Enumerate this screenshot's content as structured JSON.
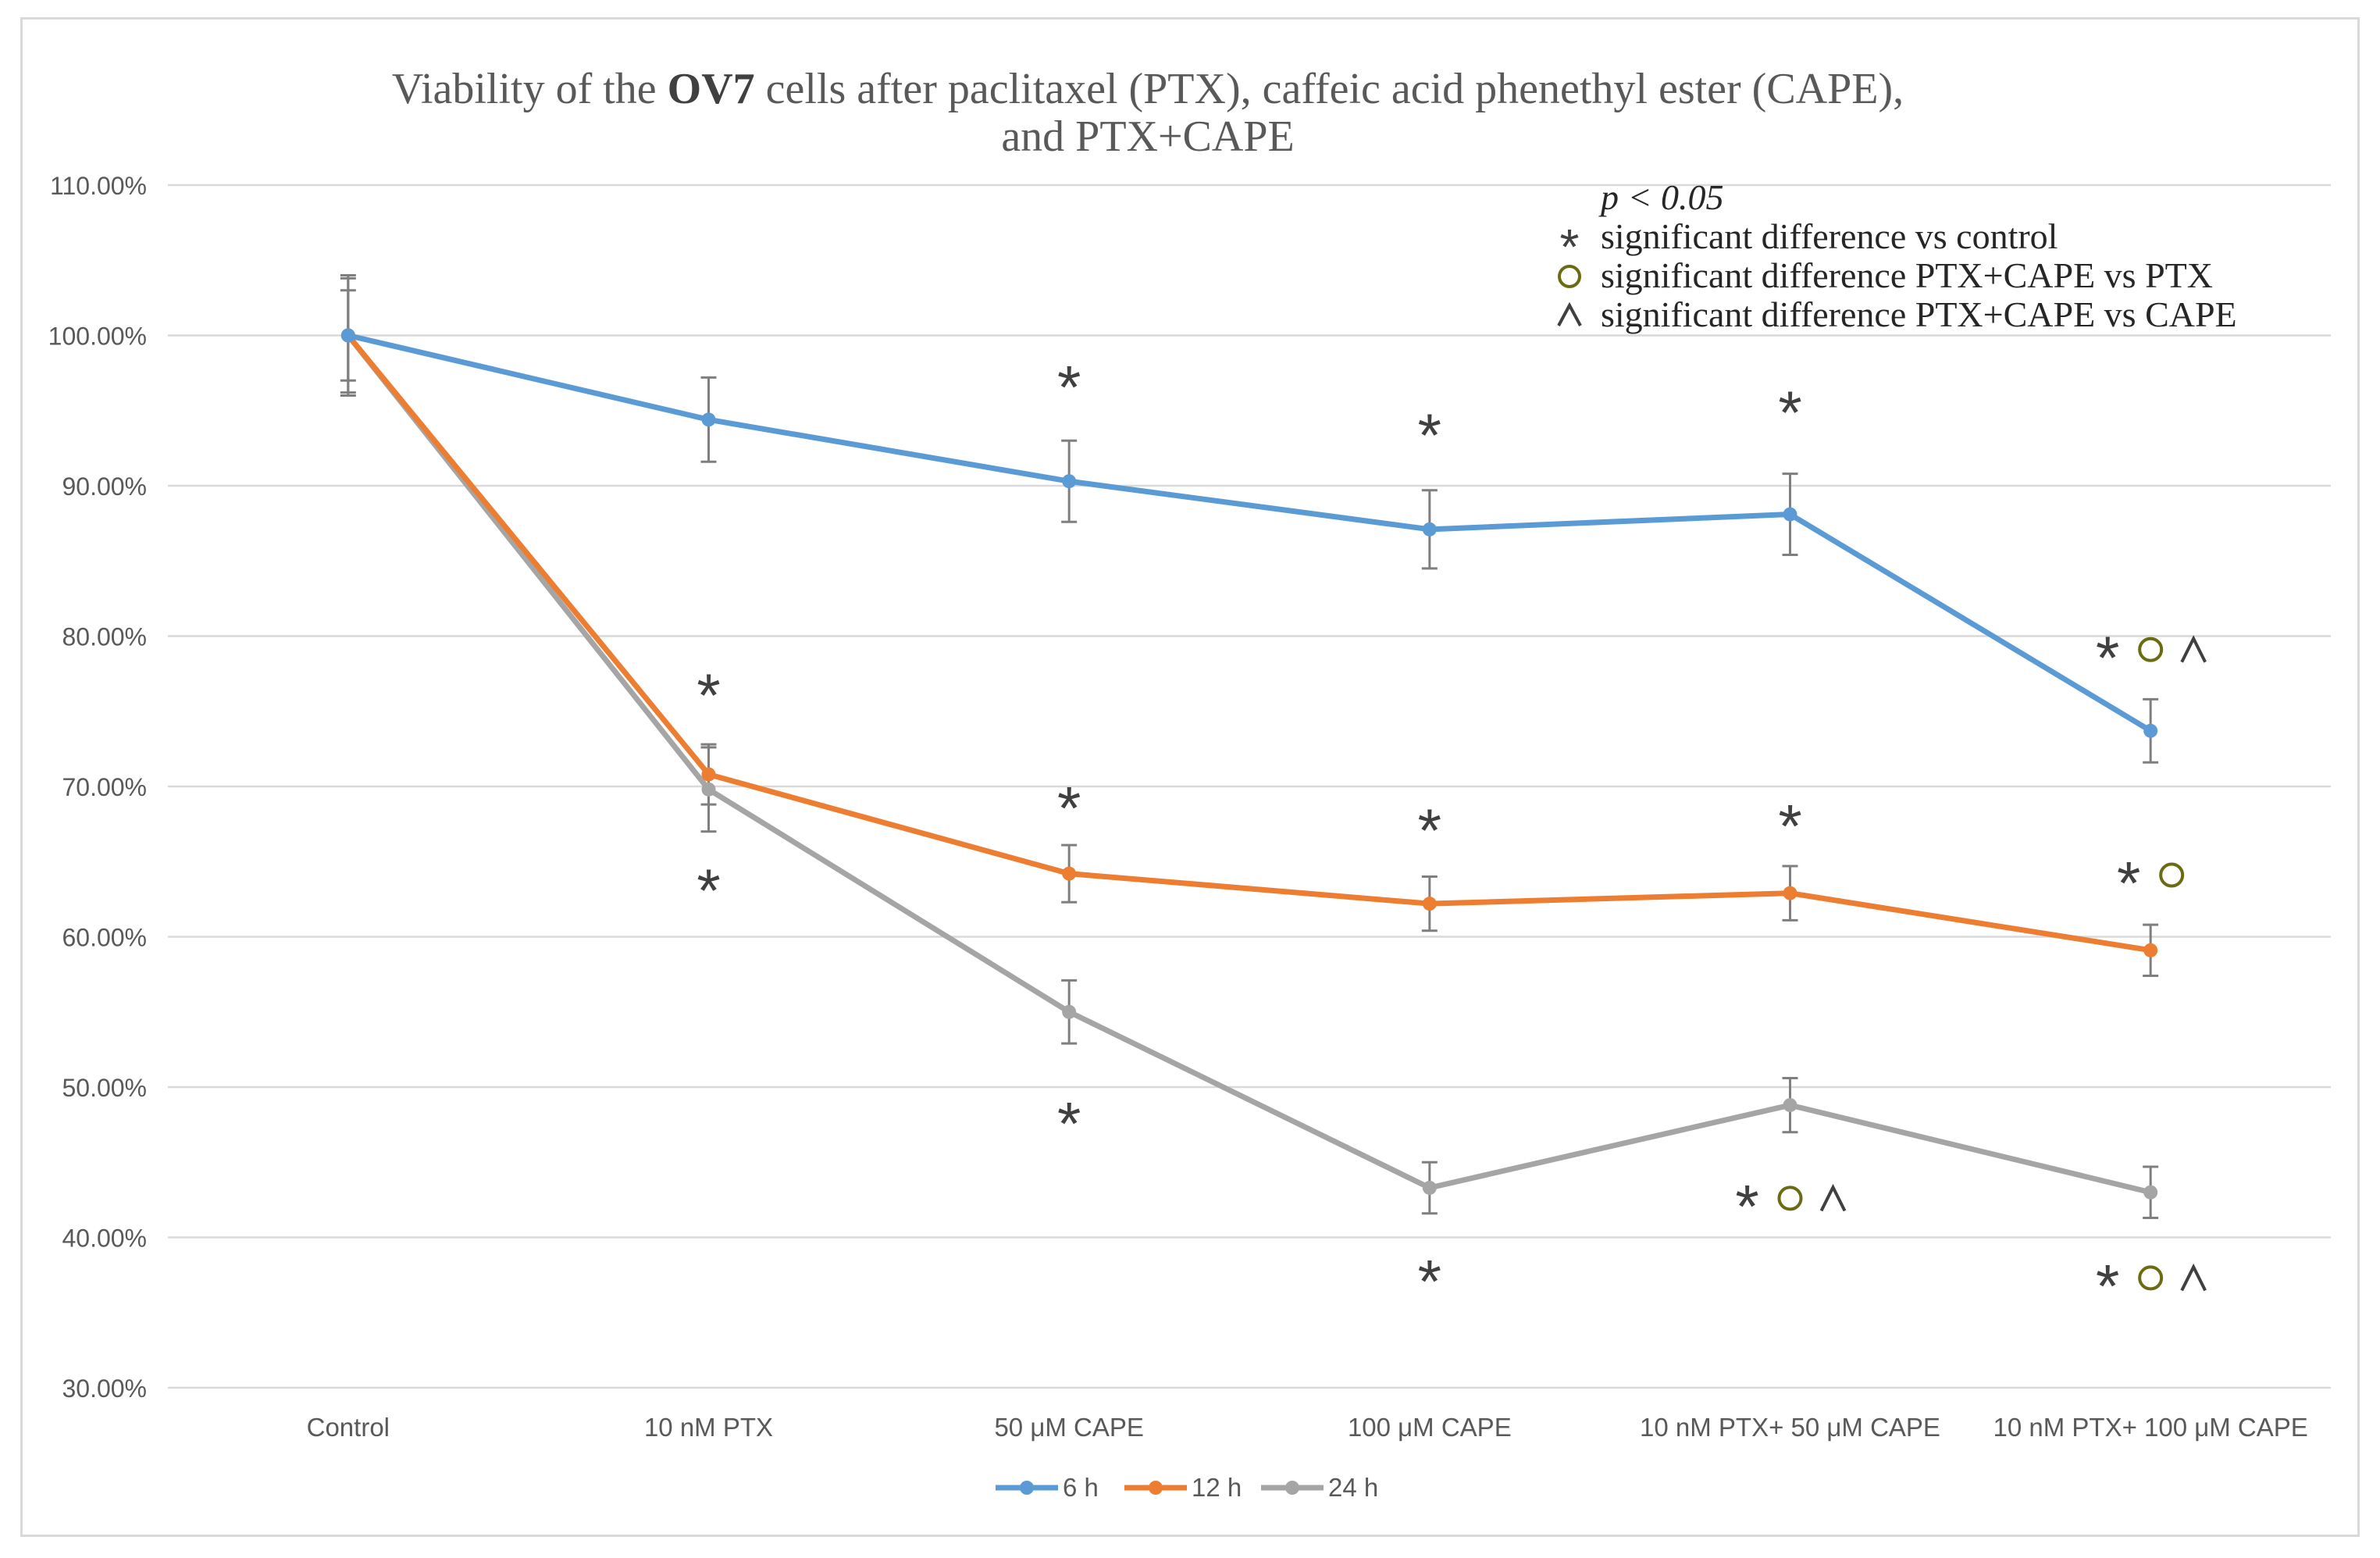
{
  "chart_data": {
    "type": "line",
    "title_parts": [
      "Viability of the ",
      "OV7",
      " cells after paclitaxel (PTX), caffeic acid phenethyl ester (CAPE),"
    ],
    "title_line2": "and  PTX+CAPE",
    "categories": [
      "Control",
      "10 nM  PTX",
      "50 μM  CAPE",
      "100 μM CAPE",
      "10 nM  PTX+ 50 μM  CAPE",
      "10 nM  PTX+ 100 μM CAPE"
    ],
    "ylim": [
      0.3,
      1.1
    ],
    "yticks": [
      "30.00%",
      "40.00%",
      "50.00%",
      "60.00%",
      "70.00%",
      "80.00%",
      "90.00%",
      "100.00%",
      "110.00%"
    ],
    "ytick_values": [
      0.3,
      0.4,
      0.5,
      0.6,
      0.7,
      0.8,
      0.9,
      1.0,
      1.1
    ],
    "grid": true,
    "legend_position": "bottom",
    "series": [
      {
        "name": "6 h",
        "color": "#5b9bd5",
        "values": [
          1.0,
          0.944,
          0.903,
          0.871,
          0.881,
          0.737
        ],
        "errors": [
          0.038,
          0.028,
          0.027,
          0.026,
          0.027,
          0.021
        ]
      },
      {
        "name": "12 h",
        "color": "#ed7d31",
        "values": [
          1.0,
          0.708,
          0.642,
          0.622,
          0.629,
          0.591
        ],
        "errors": [
          0.03,
          0.02,
          0.019,
          0.018,
          0.018,
          0.017
        ]
      },
      {
        "name": "24 h",
        "color": "#a5a5a5",
        "values": [
          1.0,
          0.698,
          0.55,
          0.433,
          0.488,
          0.43
        ],
        "errors": [
          0.04,
          0.028,
          0.021,
          0.017,
          0.018,
          0.017
        ]
      }
    ],
    "significance_markers": [
      {
        "category": 1,
        "value": 0.765,
        "text": "*"
      },
      {
        "category": 1,
        "value": 0.635,
        "text": "*"
      },
      {
        "category": 2,
        "value": 0.97,
        "text": "*"
      },
      {
        "category": 2,
        "value": 0.69,
        "text": "*"
      },
      {
        "category": 2,
        "value": 0.48,
        "text": "*"
      },
      {
        "category": 3,
        "value": 0.938,
        "text": "*"
      },
      {
        "category": 3,
        "value": 0.675,
        "text": "*"
      },
      {
        "category": 3,
        "value": 0.375,
        "text": "*"
      },
      {
        "category": 4,
        "value": 0.953,
        "text": "*"
      },
      {
        "category": 4,
        "value": 0.678,
        "text": "*"
      },
      {
        "category": 4,
        "value": 0.425,
        "text": "*",
        "circle": true,
        "caret": true
      },
      {
        "category": 5,
        "value": 0.79,
        "text": "*",
        "circle": true,
        "caret": true
      },
      {
        "category": 5,
        "value": 0.64,
        "text": "*",
        "circle": true
      },
      {
        "category": 5,
        "value": 0.372,
        "text": "*",
        "circle": true,
        "caret": true
      }
    ],
    "annotation_box": {
      "p_value": "p < 0.05",
      "lines": [
        {
          "symbol": "star",
          "symbol_text": "*",
          "text": "significant difference vs control"
        },
        {
          "symbol": "circle",
          "symbol_text": "",
          "text": "significant difference PTX+CAPE vs PTX"
        },
        {
          "symbol": "caret",
          "symbol_text": "^",
          "text": "significant difference PTX+CAPE vs CAPE"
        }
      ]
    },
    "colors": {
      "gridline": "#d9d9d9",
      "axis_text": "#595959",
      "error_bar": "#7f7f7f",
      "circle": "#6b6b12",
      "star": "#404040"
    }
  }
}
